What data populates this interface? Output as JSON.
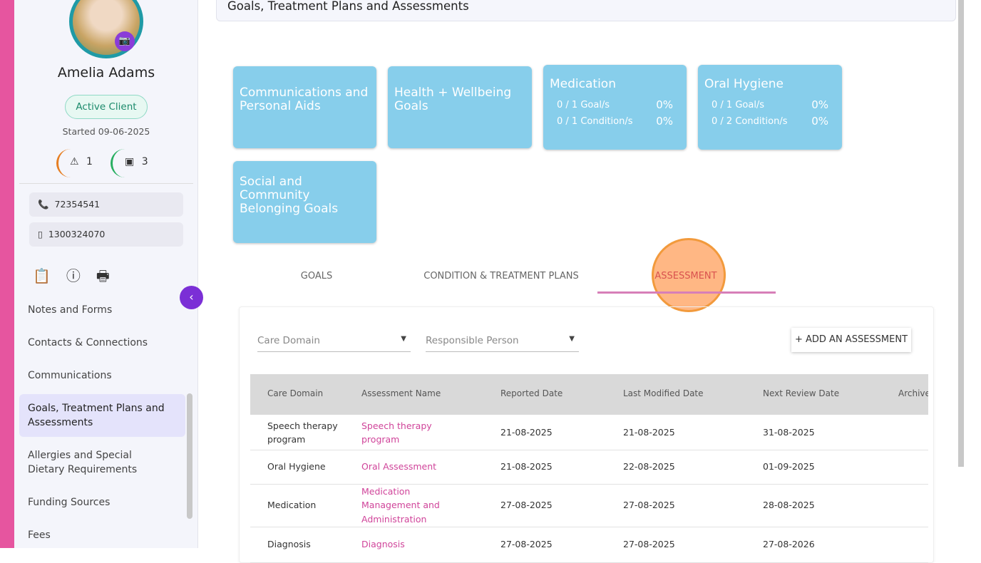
{
  "header": {
    "title": "Goals, Treatment Plans and Assessments"
  },
  "profile": {
    "name": "Amelia Adams",
    "status": "Active Client",
    "started": "Started 09-06-2025",
    "alerts": "1",
    "documents": "3",
    "phone": "72354541",
    "mobile": "1300324070"
  },
  "nav": [
    "Notes and Forms",
    "Contacts & Connections",
    "Communications",
    "Goals, Treatment Plans and Assessments",
    "Allergies and Special Dietary Requirements",
    "Funding Sources",
    "Fees"
  ],
  "cards": [
    {
      "title": "Communications and Personal Aids"
    },
    {
      "title": "Health + Wellbeing Goals"
    },
    {
      "title": "Medication",
      "rows": [
        {
          "label": "0 / 1 Goal/s",
          "pct": "0%"
        },
        {
          "label": "0 / 1 Condition/s",
          "pct": "0%"
        }
      ]
    },
    {
      "title": "Oral Hygiene",
      "rows": [
        {
          "label": "0 / 1 Goal/s",
          "pct": "0%"
        },
        {
          "label": "0 / 2 Condition/s",
          "pct": "0%"
        }
      ]
    },
    {
      "title": "Social and Community Belonging Goals"
    }
  ],
  "tabs": [
    "GOALS",
    "CONDITION & TREATMENT PLANS",
    "ASSESSMENT"
  ],
  "filters": [
    "Care Domain",
    "Responsible Person"
  ],
  "add_button": "+ ADD AN ASSESSMENT",
  "table": {
    "columns": [
      "Care Domain",
      "Assessment Name",
      "Reported Date",
      "Last Modified Date",
      "Next Review Date",
      "Archive"
    ],
    "rows": [
      [
        "Speech therapy program",
        "Speech therapy program",
        "21-08-2025",
        "21-08-2025",
        "31-08-2025"
      ],
      [
        "Oral Hygiene",
        "Oral Assessment",
        "21-08-2025",
        "22-08-2025",
        "01-09-2025"
      ],
      [
        "Medication",
        "Medication Management and Administration",
        "27-08-2025",
        "27-08-2025",
        "28-08-2025"
      ],
      [
        "Diagnosis",
        "Diagnosis",
        "27-08-2025",
        "27-08-2025",
        "27-08-2026"
      ]
    ]
  }
}
